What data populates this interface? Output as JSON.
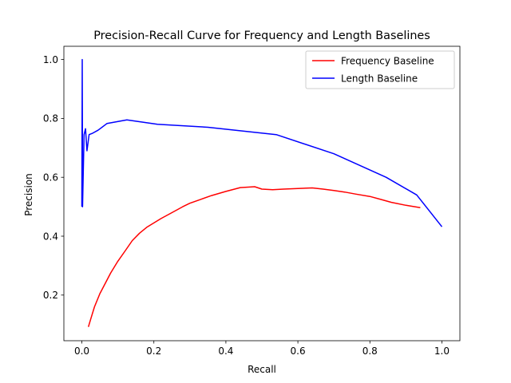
{
  "chart_data": {
    "type": "line",
    "title": "Precision-Recall Curve for Frequency and Length Baselines",
    "xlabel": "Recall",
    "ylabel": "Precision",
    "xlim": [
      -0.05,
      1.05
    ],
    "ylim": [
      0.045,
      1.045
    ],
    "grid": false,
    "legend_position": "upper-right",
    "x_ticks": [
      0.0,
      0.2,
      0.4,
      0.6,
      0.8,
      1.0
    ],
    "x_tick_labels": [
      "0.0",
      "0.2",
      "0.4",
      "0.6",
      "0.8",
      "1.0"
    ],
    "y_ticks": [
      0.2,
      0.4,
      0.6,
      0.8,
      1.0
    ],
    "y_tick_labels": [
      "0.2",
      "0.4",
      "0.6",
      "0.8",
      "1.0"
    ],
    "series": [
      {
        "name": "Frequency Baseline",
        "color": "#ff0000",
        "x": [
          0.018,
          0.025,
          0.035,
          0.05,
          0.065,
          0.08,
          0.1,
          0.12,
          0.14,
          0.16,
          0.18,
          0.2,
          0.22,
          0.25,
          0.28,
          0.3,
          0.33,
          0.36,
          0.4,
          0.44,
          0.48,
          0.5,
          0.53,
          0.56,
          0.6,
          0.64,
          0.67,
          0.7,
          0.73,
          0.76,
          0.8,
          0.83,
          0.86,
          0.9,
          0.94
        ],
        "y": [
          0.092,
          0.12,
          0.16,
          0.205,
          0.24,
          0.275,
          0.315,
          0.35,
          0.385,
          0.41,
          0.43,
          0.445,
          0.46,
          0.48,
          0.5,
          0.512,
          0.525,
          0.538,
          0.552,
          0.565,
          0.568,
          0.56,
          0.558,
          0.56,
          0.562,
          0.564,
          0.56,
          0.555,
          0.55,
          0.543,
          0.535,
          0.525,
          0.515,
          0.505,
          0.497
        ]
      },
      {
        "name": "Length Baseline",
        "color": "#0000ff",
        "x": [
          0.0,
          0.001,
          0.002,
          0.004,
          0.006,
          0.01,
          0.014,
          0.02,
          0.03,
          0.045,
          0.07,
          0.125,
          0.21,
          0.35,
          0.54,
          0.7,
          0.845,
          0.93,
          1.0
        ],
        "y": [
          0.5,
          1.0,
          0.5,
          0.62,
          0.745,
          0.765,
          0.69,
          0.745,
          0.75,
          0.76,
          0.783,
          0.795,
          0.78,
          0.77,
          0.745,
          0.68,
          0.6,
          0.54,
          0.432
        ]
      }
    ]
  }
}
